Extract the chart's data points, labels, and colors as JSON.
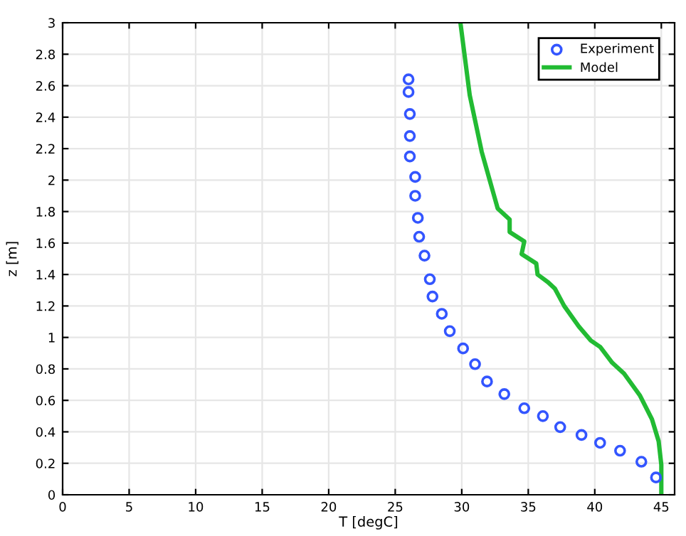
{
  "chart_data": {
    "type": "scatter",
    "xlabel": "T [degC]",
    "ylabel": "z [m]",
    "xlim": [
      0,
      46
    ],
    "xticks": [
      0,
      5,
      10,
      15,
      20,
      25,
      30,
      35,
      40,
      45
    ],
    "ylim": [
      0,
      3
    ],
    "yticks": [
      0,
      0.2,
      0.4,
      0.6,
      0.8,
      1,
      1.2,
      1.4,
      1.6,
      1.8,
      2,
      2.2,
      2.4,
      2.6,
      2.8,
      3
    ],
    "grid": true,
    "legend": "top right",
    "series": [
      {
        "name": "Experiment",
        "marker": "circle",
        "color": "#3355ff",
        "x": [
          26.0,
          26.0,
          26.1,
          26.1,
          26.1,
          26.5,
          26.5,
          26.7,
          26.8,
          27.2,
          27.6,
          27.8,
          28.5,
          29.1,
          30.1,
          31.0,
          31.9,
          33.2,
          34.7,
          36.1,
          37.4,
          39.0,
          40.4,
          41.9,
          43.5,
          44.6
        ],
        "values": [
          2.64,
          2.56,
          2.42,
          2.28,
          2.15,
          2.02,
          1.9,
          1.76,
          1.64,
          1.52,
          1.37,
          1.26,
          1.15,
          1.04,
          0.93,
          0.83,
          0.72,
          0.64,
          0.55,
          0.5,
          0.43,
          0.38,
          0.33,
          0.28,
          0.21,
          0.11
        ]
      },
      {
        "name": "Model",
        "type": "line",
        "marker": "none",
        "line_style": "solid",
        "color": "#22bb33",
        "x": [
          29.9,
          30.6,
          31.5,
          31.8,
          32.1,
          32.4,
          32.7,
          33.6,
          33.6,
          34.7,
          34.5,
          35.6,
          35.7,
          36.5,
          37.0,
          37.7,
          38.8,
          39.7,
          40.4,
          41.3,
          42.2,
          43.4,
          44.3,
          44.8,
          45.0,
          45.0
        ],
        "values": [
          3.0,
          2.54,
          2.18,
          2.09,
          2.0,
          1.91,
          1.82,
          1.75,
          1.67,
          1.61,
          1.53,
          1.47,
          1.4,
          1.35,
          1.31,
          1.2,
          1.07,
          0.98,
          0.94,
          0.84,
          0.77,
          0.63,
          0.48,
          0.34,
          0.19,
          0.0
        ]
      }
    ]
  }
}
